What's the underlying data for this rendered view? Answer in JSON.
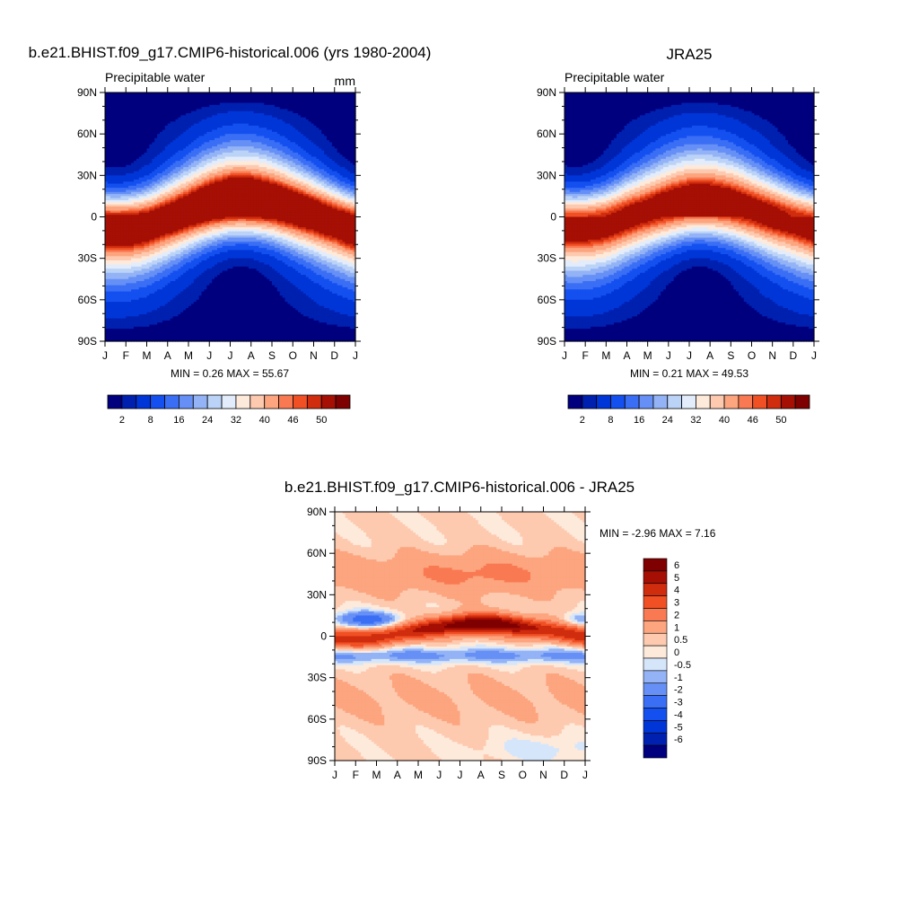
{
  "panels": [
    {
      "title": "b.e21.BHIST.f09_g17.CMIP6-historical.006 (yrs 1980-2004)",
      "left_label": "Precipitable water",
      "right_label": "mm",
      "stats": "MIN =   0.26 MAX =  55.67"
    },
    {
      "title": "JRA25",
      "left_label": "Precipitable water",
      "right_label": "",
      "stats": "MIN =   0.21 MAX =  49.53"
    },
    {
      "title": "b.e21.BHIST.f09_g17.CMIP6-historical.006 - JRA25",
      "left_label": "",
      "right_label": "",
      "stats": "MIN =  -2.96 MAX =   7.16"
    }
  ],
  "chart_data": [
    {
      "type": "heatmap",
      "title": "b.e21.BHIST.f09_g17.CMIP6-historical.006 (yrs 1980-2004)",
      "variable": "Precipitable water",
      "units": "mm",
      "x_ticks": [
        "J",
        "F",
        "M",
        "A",
        "M",
        "J",
        "J",
        "A",
        "S",
        "O",
        "N",
        "D",
        "J"
      ],
      "y_ticks": [
        "90N",
        "60N",
        "30N",
        "0",
        "30S",
        "60S",
        "90S"
      ],
      "y_tick_values": [
        90,
        60,
        30,
        0,
        -30,
        -60,
        -90
      ],
      "min": 0.26,
      "max": 55.67,
      "colorbar_labels": [
        "2",
        "8",
        "16",
        "24",
        "32",
        "40",
        "46",
        "50"
      ],
      "levels": [
        2,
        4,
        8,
        12,
        16,
        20,
        24,
        28,
        32,
        36,
        40,
        44,
        46,
        48,
        50
      ],
      "colors": [
        "#00007f",
        "#0020b0",
        "#0036d8",
        "#1450f0",
        "#3a6ef5",
        "#6690f5",
        "#93b3f6",
        "#bcd3f8",
        "#e3ecfb",
        "#feeadb",
        "#fdcab0",
        "#fca57f",
        "#f97a52",
        "#f05024",
        "#d02c0e",
        "#a50f04",
        "#7f0000"
      ],
      "itcz_lat_by_month": [
        -4,
        -4,
        -3,
        0,
        3,
        6,
        8,
        8,
        7,
        5,
        3,
        0,
        -4
      ],
      "peak_by_month": [
        52,
        52,
        51,
        51,
        52,
        54,
        55.7,
        55.5,
        54,
        53,
        52,
        51,
        52
      ]
    },
    {
      "type": "heatmap",
      "title": "JRA25",
      "variable": "Precipitable water",
      "x_ticks": [
        "J",
        "F",
        "M",
        "A",
        "M",
        "J",
        "J",
        "A",
        "S",
        "O",
        "N",
        "D",
        "J"
      ],
      "y_ticks": [
        "90N",
        "60N",
        "30N",
        "0",
        "30S",
        "60S",
        "90S"
      ],
      "y_tick_values": [
        90,
        60,
        30,
        0,
        -30,
        -60,
        -90
      ],
      "min": 0.21,
      "max": 49.53,
      "colorbar_labels": [
        "2",
        "8",
        "16",
        "24",
        "32",
        "40",
        "46",
        "50"
      ],
      "levels": [
        2,
        4,
        8,
        12,
        16,
        20,
        24,
        28,
        32,
        36,
        40,
        44,
        46,
        48,
        50
      ],
      "colors": [
        "#00007f",
        "#0020b0",
        "#0036d8",
        "#1450f0",
        "#3a6ef5",
        "#6690f5",
        "#93b3f6",
        "#bcd3f8",
        "#e3ecfb",
        "#feeadb",
        "#fdcab0",
        "#fca57f",
        "#f97a52",
        "#f05024",
        "#d02c0e",
        "#a50f04",
        "#7f0000"
      ],
      "itcz_lat_by_month": [
        -3,
        -3,
        -2,
        1,
        3,
        5,
        7,
        7,
        6,
        4,
        2,
        0,
        -3
      ],
      "peak_by_month": [
        48,
        48,
        48,
        48,
        48,
        49,
        49.5,
        49.5,
        49,
        48,
        48,
        47,
        48
      ]
    },
    {
      "type": "heatmap",
      "title": "b.e21.BHIST.f09_g17.CMIP6-historical.006 - JRA25",
      "x_ticks": [
        "J",
        "F",
        "M",
        "A",
        "M",
        "J",
        "J",
        "A",
        "S",
        "O",
        "N",
        "D",
        "J"
      ],
      "y_ticks": [
        "90N",
        "60N",
        "30N",
        "0",
        "30S",
        "60S",
        "90S"
      ],
      "y_tick_values": [
        90,
        60,
        30,
        0,
        -30,
        -60,
        -90
      ],
      "min": -2.96,
      "max": 7.16,
      "colorbar_labels": [
        "6",
        "5",
        "4",
        "3",
        "2",
        "1",
        "0.5",
        "0",
        "-0.5",
        "-1",
        "-2",
        "-3",
        "-4",
        "-5",
        "-6"
      ],
      "levels": [
        -6,
        -5,
        -4,
        -3,
        -2,
        -1,
        -0.5,
        0,
        0.5,
        1,
        2,
        3,
        4,
        5,
        6
      ],
      "colors": [
        "#00007f",
        "#0020b0",
        "#0036d8",
        "#1450f0",
        "#3a6ef5",
        "#6690f5",
        "#93b3f6",
        "#d6e6fa",
        "#feeadb",
        "#fdcab0",
        "#fca57f",
        "#f97a52",
        "#f05024",
        "#d02c0e",
        "#a50f04",
        "#7f0000"
      ]
    }
  ]
}
